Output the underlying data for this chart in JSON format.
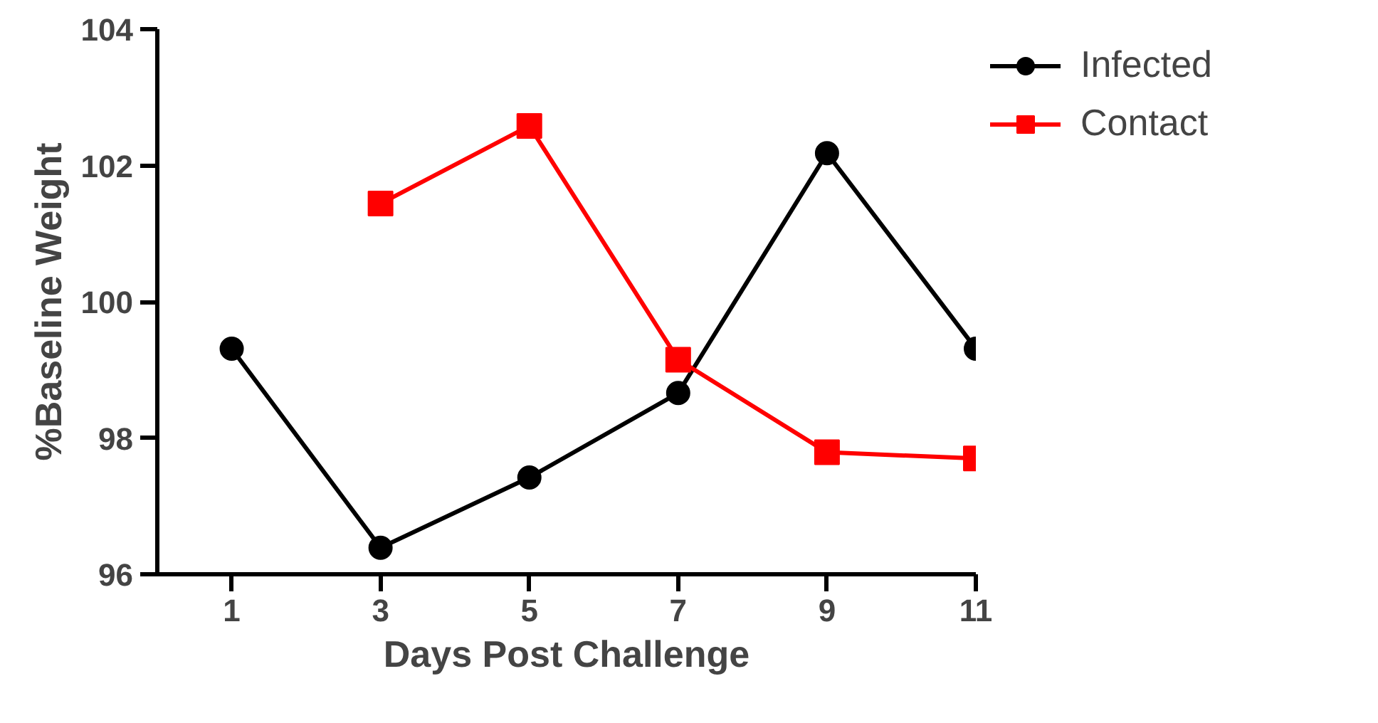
{
  "chart_data": {
    "type": "line",
    "xlabel": "Days Post Challenge",
    "ylabel": "%Baseline Weight",
    "x": [
      1,
      3,
      5,
      7,
      9,
      11
    ],
    "xlim": [
      0,
      11
    ],
    "xticks": [
      1,
      3,
      5,
      7,
      9,
      11
    ],
    "ylim": [
      96,
      104
    ],
    "yticks": [
      96,
      98,
      100,
      102,
      104
    ],
    "grid": false,
    "legend": "top right",
    "series": [
      {
        "name": "Infected",
        "color": "#000000",
        "marker": "circle",
        "values": [
          99.31,
          96.39,
          97.42,
          98.66,
          102.18,
          99.31
        ]
      },
      {
        "name": "Contact",
        "color": "#ff0000",
        "marker": "square",
        "values": [
          null,
          101.44,
          102.58,
          99.15,
          97.79,
          97.7
        ]
      }
    ]
  }
}
